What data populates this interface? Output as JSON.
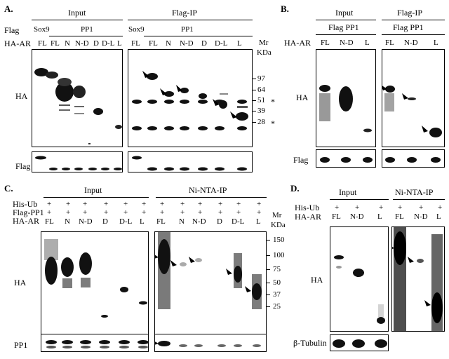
{
  "panels": {
    "a": {
      "letter": "A.",
      "row_labels": {
        "flag": "Flag",
        "ha_ar": "HA-AR"
      },
      "input_header": "Input",
      "ip_header": "Flag-IP",
      "sox9": "Sox9",
      "pp1": "PP1",
      "lanes": [
        "FL",
        "FL",
        "N",
        "N-D",
        "D",
        "D-L",
        "L"
      ],
      "blot_labels": {
        "ha": "HA",
        "flag": "Flag"
      },
      "mr": "Mr",
      "kda": "KDa",
      "markers": [
        "97",
        "64",
        "51",
        "39",
        "28"
      ],
      "star": "*"
    },
    "b": {
      "letter": "B.",
      "input_header": "Input",
      "ip_header": "Flag-IP",
      "sub_header": "Flag PP1",
      "ha_ar": "HA-AR",
      "lanes": [
        "FL",
        "N-D",
        "L"
      ],
      "blot_labels": {
        "ha": "HA",
        "flag": "Flag"
      }
    },
    "c": {
      "letter": "C.",
      "input_header": "Input",
      "ip_header": "Ni-NTA-IP",
      "row_labels": [
        "His-Ub",
        "Flag-PP1",
        "HA-AR"
      ],
      "plus": "+",
      "lanes": [
        "FL",
        "N",
        "N-D",
        "D",
        "D-L",
        "L"
      ],
      "blot_labels": {
        "ha": "HA",
        "pp1": "PP1"
      },
      "mr": "Mr",
      "kda": "KDa",
      "markers": [
        "150",
        "100",
        "75",
        "50",
        "37",
        "25"
      ]
    },
    "d": {
      "letter": "D.",
      "input_header": "Input",
      "ip_header": "Ni-NTA-IP",
      "row_labels": [
        "His-Ub",
        "HA-AR"
      ],
      "plus": "+",
      "lanes": [
        "FL",
        "N-D",
        "L"
      ],
      "blot_labels": {
        "ha": "HA",
        "tubulin": "β-Tubulin"
      }
    }
  }
}
